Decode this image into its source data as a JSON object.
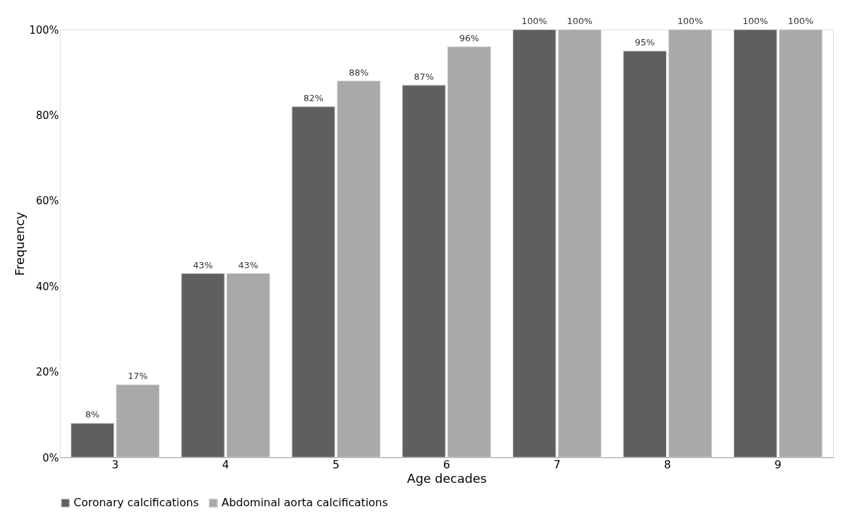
{
  "chart_data": {
    "type": "bar",
    "xlabel": "Age decades",
    "ylabel": "Frequency",
    "categories": [
      "3",
      "4",
      "5",
      "6",
      "7",
      "8",
      "9"
    ],
    "series": [
      {
        "name": "Coronary calcifications",
        "color": "#5f5f5f",
        "values": [
          8,
          43,
          82,
          87,
          100,
          95,
          100
        ],
        "value_labels": [
          "8%",
          "43%",
          "82%",
          "87%",
          "100%",
          "95%",
          "100%"
        ]
      },
      {
        "name": "Abdominal aorta calcifications",
        "color": "#a9a9a9",
        "values": [
          17,
          43,
          88,
          96,
          100,
          100,
          100
        ],
        "value_labels": [
          "17%",
          "43%",
          "88%",
          "96%",
          "100%",
          "100%",
          "100%"
        ]
      }
    ],
    "ylim": [
      0,
      100
    ],
    "yticks": [
      {
        "value": 0,
        "label": "0%"
      },
      {
        "value": 20,
        "label": "20%"
      },
      {
        "value": 40,
        "label": "40%"
      },
      {
        "value": 60,
        "label": "60%"
      },
      {
        "value": 80,
        "label": "80%"
      },
      {
        "value": 100,
        "label": "100%"
      }
    ],
    "grid": false,
    "legend": "bottom"
  }
}
